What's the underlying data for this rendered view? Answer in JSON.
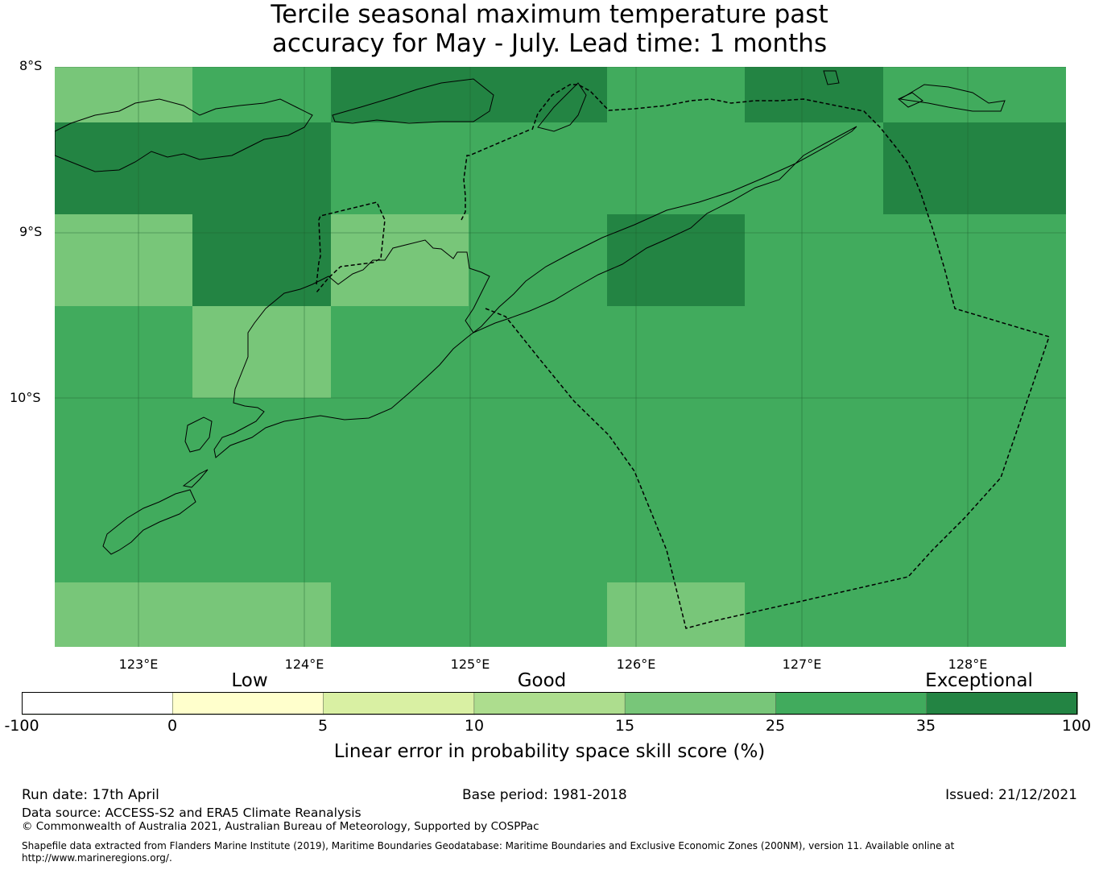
{
  "title_line1": "Tercile seasonal maximum temperature past",
  "title_line2": "accuracy for May - July. Lead time: 1 months",
  "map": {
    "lat_labels": [
      "8°S",
      "9°S",
      "10°S"
    ],
    "lon_labels": [
      "123°E",
      "124°E",
      "125°E",
      "126°E",
      "127°E",
      "128°E"
    ],
    "grid_rows": [
      [
        17,
        30,
        40,
        40,
        30,
        40,
        30
      ],
      [
        40,
        40,
        30,
        30,
        30,
        30,
        40
      ],
      [
        17,
        40,
        17,
        30,
        40,
        30,
        30
      ],
      [
        30,
        17,
        30,
        30,
        30,
        30,
        30
      ],
      [
        30,
        30,
        30,
        30,
        30,
        30,
        30
      ],
      [
        30,
        30,
        30,
        30,
        30,
        30,
        30
      ],
      [
        17,
        17,
        30,
        30,
        17,
        30,
        30
      ]
    ]
  },
  "colorbar": {
    "categories": [
      "Low",
      "Good",
      "Exceptional"
    ],
    "ticks": [
      "-100",
      "0",
      "5",
      "10",
      "15",
      "25",
      "35",
      "100"
    ],
    "colors": [
      "#ffffff",
      "#ffffcc",
      "#d9f0a3",
      "#addd8e",
      "#78c679",
      "#41ab5d",
      "#238443"
    ],
    "label": "Linear error in probability space skill score (%)"
  },
  "footer": {
    "run_date": "Run date: 17th April",
    "base_period": "Base period: 1981-2018",
    "issued": "Issued: 21/12/2021",
    "data_source": "Data source: ACCESS-S2 and ERA5 Climate Reanalysis",
    "copyright": "© Commonwealth of Australia 2021, Australian Bureau of Meteorology, Supported by COSPPac",
    "shapefile_line1": "Shapefile data extracted from Flanders Marine Institute (2019), Maritime Boundaries Geodatabase: Maritime Boundaries and Exclusive Economic Zones (200NM), version 11. Available online at",
    "shapefile_line2": "http://www.marineregions.org/."
  }
}
